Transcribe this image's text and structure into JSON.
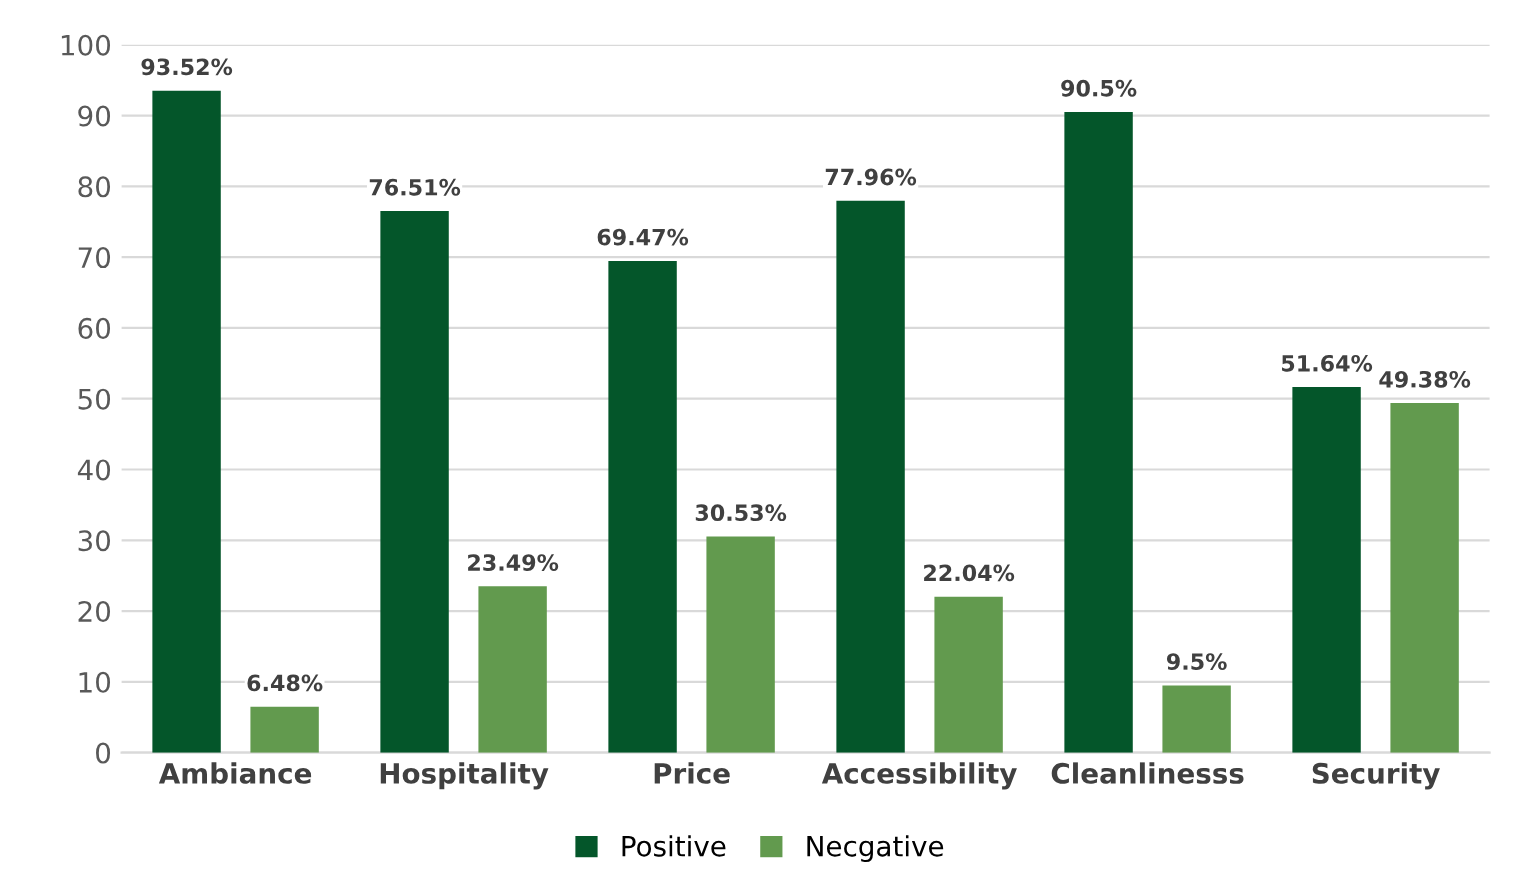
{
  "chart_data": {
    "type": "bar",
    "categories": [
      "Ambiance",
      "Hospitality",
      "Price",
      "Accessibility",
      "Cleanlinesss",
      "Security"
    ],
    "series": [
      {
        "name": "Positive",
        "color": "#04562a",
        "values": [
          93.52,
          76.51,
          69.47,
          77.96,
          90.5,
          51.64
        ],
        "value_labels": [
          "93.52%",
          "76.51%",
          "69.47%",
          "77.96%",
          "90.5%",
          "51.64%"
        ]
      },
      {
        "name": "Necgative",
        "color": "#629a4e",
        "values": [
          6.48,
          23.49,
          30.53,
          22.04,
          9.5,
          49.38
        ],
        "value_labels": [
          "6.48%",
          "23.49%",
          "30.53%",
          "22.04%",
          "9.5%",
          "49.38%"
        ]
      }
    ],
    "ylim": [
      0,
      100
    ],
    "yticks": [
      0,
      10,
      20,
      30,
      40,
      50,
      60,
      70,
      80,
      90,
      100
    ],
    "grid": "y",
    "legend": "bottom"
  }
}
